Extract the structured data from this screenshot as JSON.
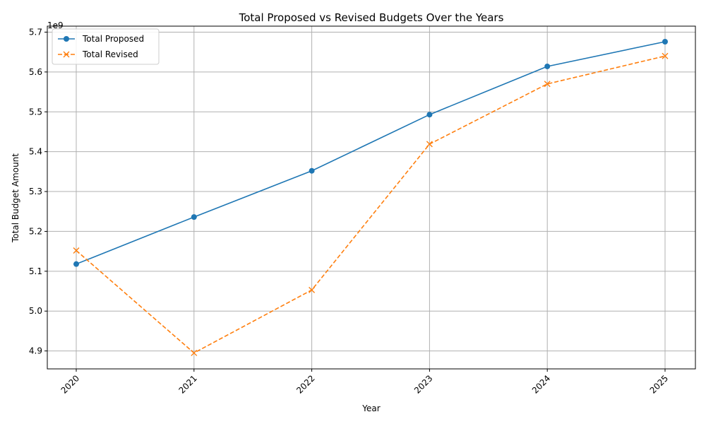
{
  "chart_data": {
    "type": "line",
    "title": "Total Proposed vs Revised Budgets Over the Years",
    "xlabel": "Year",
    "ylabel": "Total Budget Amount",
    "y_offset_text": "1e9",
    "x": [
      "2020",
      "2021",
      "2022",
      "2023",
      "2024",
      "2025"
    ],
    "y_ticks": [
      4.9,
      5.0,
      5.1,
      5.2,
      5.3,
      5.4,
      5.5,
      5.6,
      5.7
    ],
    "y_tick_labels": [
      "4.9",
      "5.0",
      "5.1",
      "5.2",
      "5.3",
      "5.4",
      "5.5",
      "5.6",
      "5.7"
    ],
    "ylim": [
      4.855,
      5.715
    ],
    "grid": true,
    "legend_position": "top-left",
    "series": [
      {
        "name": "Total Proposed",
        "values": [
          5.118,
          5.236,
          5.352,
          5.493,
          5.614,
          5.676
        ],
        "color": "#1f77b4",
        "marker": "circle",
        "line_style": "solid"
      },
      {
        "name": "Total Revised",
        "values": [
          5.152,
          4.895,
          5.053,
          5.419,
          5.57,
          5.64
        ],
        "color": "#ff7f0e",
        "marker": "x",
        "line_style": "dashed"
      }
    ]
  }
}
